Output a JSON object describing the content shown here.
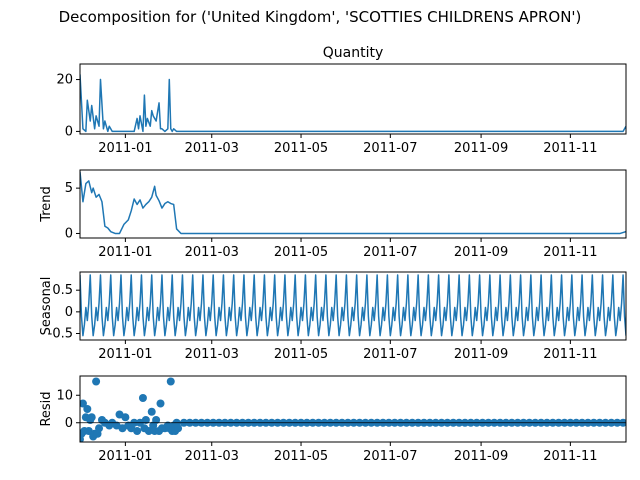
{
  "figure_title": "Decomposition for ('United Kingdom', 'SCOTTIES CHILDRENS APRON')",
  "chart_data": [
    {
      "type": "line",
      "title": "Quantity",
      "ylabel": "",
      "ylim": [
        -1,
        26
      ],
      "yticks": [
        0,
        20
      ],
      "xlim": [
        "2010-12-01",
        "2011-12-09"
      ],
      "xticks": [
        "2011-01",
        "2011-03",
        "2011-05",
        "2011-07",
        "2011-09",
        "2011-11"
      ],
      "color": "#1f77b4",
      "x": [
        "2010-12-01",
        "2010-12-03",
        "2010-12-05",
        "2010-12-06",
        "2010-12-08",
        "2010-12-09",
        "2010-12-11",
        "2010-12-12",
        "2010-12-14",
        "2010-12-15",
        "2010-12-17",
        "2010-12-18",
        "2010-12-20",
        "2010-12-21",
        "2010-12-23",
        "2010-12-26",
        "2010-12-29",
        "2011-01-01",
        "2011-01-04",
        "2011-01-07",
        "2011-01-09",
        "2011-01-10",
        "2011-01-11",
        "2011-01-13",
        "2011-01-14",
        "2011-01-15",
        "2011-01-16",
        "2011-01-18",
        "2011-01-19",
        "2011-01-20",
        "2011-01-22",
        "2011-01-24",
        "2011-01-25",
        "2011-01-26",
        "2011-01-28",
        "2011-01-30",
        "2011-01-31",
        "2011-02-01",
        "2011-02-02",
        "2011-02-03",
        "2011-02-05",
        "2011-02-08",
        "2011-03-01",
        "2011-06-01",
        "2011-09-01",
        "2011-12-07",
        "2011-12-09"
      ],
      "values": [
        22,
        1,
        0,
        12,
        4,
        10,
        1,
        6,
        2,
        20,
        1,
        4,
        0,
        2,
        0,
        0,
        0,
        0,
        0,
        0,
        5,
        1,
        6,
        0,
        14,
        2,
        5,
        2,
        8,
        6,
        4,
        11,
        1,
        1,
        0,
        1,
        20,
        1,
        0,
        1,
        0,
        0,
        0,
        0,
        0,
        0,
        2
      ]
    },
    {
      "type": "line",
      "title": "",
      "ylabel": "Trend",
      "ylim": [
        -0.5,
        7
      ],
      "yticks": [
        0,
        5
      ],
      "xlim": [
        "2010-12-01",
        "2011-12-09"
      ],
      "xticks": [
        "2011-01",
        "2011-03",
        "2011-05",
        "2011-07",
        "2011-09",
        "2011-11"
      ],
      "color": "#1f77b4",
      "x": [
        "2010-12-01",
        "2010-12-03",
        "2010-12-05",
        "2010-12-07",
        "2010-12-09",
        "2010-12-10",
        "2010-12-12",
        "2010-12-14",
        "2010-12-16",
        "2010-12-18",
        "2010-12-20",
        "2010-12-22",
        "2010-12-25",
        "2010-12-28",
        "2010-12-31",
        "2011-01-03",
        "2011-01-05",
        "2011-01-07",
        "2011-01-09",
        "2011-01-11",
        "2011-01-13",
        "2011-01-15",
        "2011-01-17",
        "2011-01-19",
        "2011-01-21",
        "2011-01-22",
        "2011-01-24",
        "2011-01-26",
        "2011-01-28",
        "2011-01-30",
        "2011-02-01",
        "2011-02-03",
        "2011-02-05",
        "2011-02-08",
        "2011-03-01",
        "2011-07-01",
        "2011-11-01",
        "2011-12-05",
        "2011-12-09"
      ],
      "values": [
        6.8,
        3.5,
        5.5,
        5.8,
        4.5,
        5.0,
        4.0,
        4.3,
        3.5,
        0.8,
        0.6,
        0.2,
        0.0,
        0.0,
        1.0,
        1.5,
        2.5,
        3.8,
        3.2,
        3.7,
        2.8,
        3.2,
        3.5,
        4.0,
        5.2,
        4.2,
        3.6,
        2.8,
        3.3,
        3.5,
        3.3,
        3.2,
        0.5,
        0.0,
        0.0,
        0.0,
        0.0,
        0.0,
        0.2
      ]
    },
    {
      "type": "line",
      "title": "",
      "ylabel": "Seasonal",
      "ylim": [
        -0.65,
        0.92
      ],
      "yticks": [
        -0.5,
        0.0,
        0.5
      ],
      "xlim": [
        "2010-12-01",
        "2011-12-09"
      ],
      "xticks": [
        "2011-01",
        "2011-03",
        "2011-05",
        "2011-07",
        "2011-09",
        "2011-11"
      ],
      "color": "#1f77b4",
      "start": "2010-12-01",
      "end": "2011-12-09",
      "period_days": 7,
      "weekly_pattern": [
        0.85,
        -0.1,
        -0.55,
        -0.3,
        0.1,
        -0.2,
        0.2
      ]
    },
    {
      "type": "scatter",
      "title": "",
      "ylabel": "Resid",
      "ylim": [
        -7,
        17
      ],
      "yticks": [
        0,
        10
      ],
      "xlim": [
        "2010-12-01",
        "2011-12-09"
      ],
      "xticks": [
        "2011-01",
        "2011-03",
        "2011-05",
        "2011-07",
        "2011-09",
        "2011-11"
      ],
      "color": "#1f77b4",
      "start": "2010-12-01",
      "end": "2011-12-09",
      "points": [
        {
          "x": "2010-12-01",
          "y": -6
        },
        {
          "x": "2010-12-02",
          "y": -4
        },
        {
          "x": "2010-12-03",
          "y": 7
        },
        {
          "x": "2010-12-04",
          "y": -3
        },
        {
          "x": "2010-12-05",
          "y": 2
        },
        {
          "x": "2010-12-06",
          "y": 5
        },
        {
          "x": "2010-12-07",
          "y": -3
        },
        {
          "x": "2010-12-08",
          "y": 1
        },
        {
          "x": "2010-12-09",
          "y": 2
        },
        {
          "x": "2010-12-10",
          "y": -5
        },
        {
          "x": "2010-12-11",
          "y": -4
        },
        {
          "x": "2010-12-12",
          "y": 15
        },
        {
          "x": "2010-12-13",
          "y": -4
        },
        {
          "x": "2010-12-14",
          "y": -2
        },
        {
          "x": "2010-12-16",
          "y": 1
        },
        {
          "x": "2010-12-18",
          "y": 0
        },
        {
          "x": "2010-12-21",
          "y": -1
        },
        {
          "x": "2010-12-23",
          "y": 0
        },
        {
          "x": "2010-12-26",
          "y": -1
        },
        {
          "x": "2010-12-28",
          "y": 3
        },
        {
          "x": "2010-12-30",
          "y": -2
        },
        {
          "x": "2011-01-01",
          "y": 2
        },
        {
          "x": "2011-01-03",
          "y": -1
        },
        {
          "x": "2011-01-05",
          "y": -2
        },
        {
          "x": "2011-01-07",
          "y": 0
        },
        {
          "x": "2011-01-09",
          "y": -3
        },
        {
          "x": "2011-01-11",
          "y": 0
        },
        {
          "x": "2011-01-13",
          "y": 9
        },
        {
          "x": "2011-01-14",
          "y": -2
        },
        {
          "x": "2011-01-15",
          "y": 1
        },
        {
          "x": "2011-01-17",
          "y": -3
        },
        {
          "x": "2011-01-19",
          "y": 4
        },
        {
          "x": "2011-01-20",
          "y": -1
        },
        {
          "x": "2011-01-21",
          "y": -3
        },
        {
          "x": "2011-01-22",
          "y": 1
        },
        {
          "x": "2011-01-24",
          "y": -3
        },
        {
          "x": "2011-01-25",
          "y": 7
        },
        {
          "x": "2011-01-26",
          "y": -2
        },
        {
          "x": "2011-01-28",
          "y": -2
        },
        {
          "x": "2011-01-30",
          "y": -1
        },
        {
          "x": "2011-01-31",
          "y": -2
        },
        {
          "x": "2011-02-01",
          "y": 15
        },
        {
          "x": "2011-02-02",
          "y": -3
        },
        {
          "x": "2011-02-03",
          "y": -1
        },
        {
          "x": "2011-02-04",
          "y": -3
        },
        {
          "x": "2011-02-05",
          "y": 0
        },
        {
          "x": "2011-02-06",
          "y": -2
        }
      ]
    }
  ]
}
